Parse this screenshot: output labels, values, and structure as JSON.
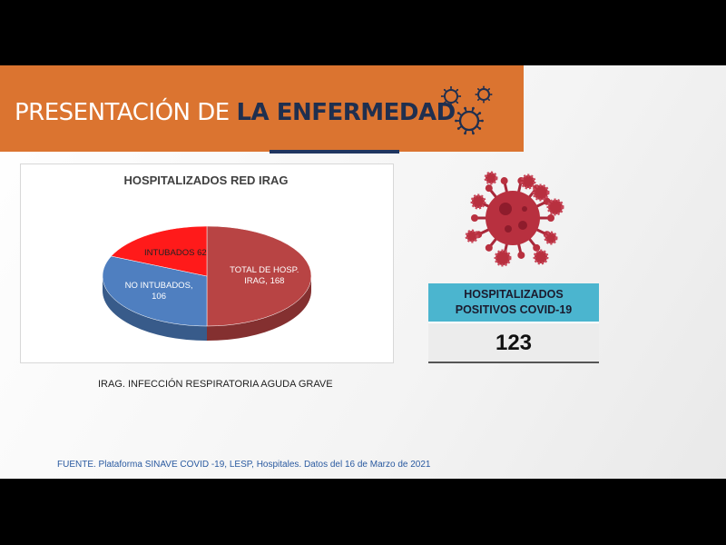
{
  "header": {
    "title_light": "PRESENTACIÓN DE",
    "title_bold": "LA ENFERMEDAD"
  },
  "chart_data": {
    "type": "pie",
    "title": "HOSPITALIZADOS RED IRAG",
    "categories": [
      "TOTAL DE HOSP. IRAG,",
      "NO INTUBADOS,",
      "INTUBADOS"
    ],
    "values": [
      168,
      106,
      62
    ],
    "colors": [
      "#b84444",
      "#4f7fc0",
      "#ff1a1a"
    ]
  },
  "note": "IRAG. INFECCIÓN RESPIRATORIA AGUDA GRAVE",
  "stat_box": {
    "title_lines": [
      "HOSPITALIZADOS",
      "POSITIVOS COVID-19"
    ],
    "value": 123
  },
  "footer": {
    "source": "FUENTE. Plataforma SINAVE COVID -19, LESP, Hospitales. Datos del 16 de Marzo de 2021"
  }
}
